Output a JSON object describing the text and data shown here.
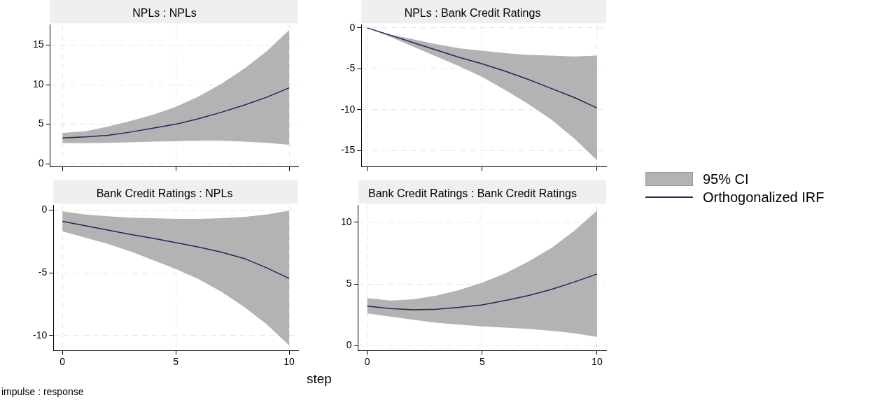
{
  "chart_data": [
    {
      "type": "line",
      "title": "NPLs : NPLs",
      "annotations": [
        "95% CI"
      ],
      "x": [
        0,
        1,
        2,
        3,
        4,
        5,
        6,
        7,
        8,
        9,
        10
      ],
      "xlim": [
        -0.55,
        10.4
      ],
      "xticks": [
        0,
        5,
        10
      ],
      "ylim": [
        -0.4,
        17.6
      ],
      "yticks": [
        0,
        5,
        10,
        15
      ],
      "grid": true,
      "tick_labels": "y",
      "legend": "right",
      "marker": "none",
      "series": [
        {
          "name": "Orthogonalized IRF",
          "color": "#1a2a5a",
          "values": [
            3.25,
            3.4,
            3.6,
            4.0,
            4.5,
            5.0,
            5.7,
            6.5,
            7.4,
            8.4,
            9.6
          ],
          "lower": [
            2.62,
            2.6,
            2.65,
            2.7,
            2.8,
            2.85,
            2.9,
            2.9,
            2.8,
            2.65,
            2.4
          ],
          "upper": [
            3.9,
            4.1,
            4.7,
            5.4,
            6.2,
            7.2,
            8.5,
            10.1,
            12.0,
            14.2,
            16.9
          ]
        }
      ]
    },
    {
      "type": "line",
      "title": "NPLs : Bank Credit Ratings",
      "x": [
        0,
        1,
        2,
        3,
        4,
        5,
        6,
        7,
        8,
        9,
        10
      ],
      "xlim": [
        -0.26,
        10.4
      ],
      "xticks": [
        0,
        5,
        10
      ],
      "ylim": [
        -17,
        0.4
      ],
      "yticks": [
        -15,
        -10,
        -5,
        0
      ],
      "grid": true,
      "tick_labels": "y",
      "marker": "none",
      "series": [
        {
          "color": "#1a2a5a",
          "values": [
            0,
            -0.9,
            -1.8,
            -2.7,
            -3.6,
            -4.4,
            -5.3,
            -6.3,
            -7.4,
            -8.5,
            -9.8
          ],
          "lower": [
            0,
            -1.1,
            -2.3,
            -3.5,
            -4.7,
            -6.0,
            -7.6,
            -9.3,
            -11.2,
            -13.5,
            -16.2
          ],
          "upper": [
            0,
            -0.8,
            -1.4,
            -2.0,
            -2.5,
            -2.8,
            -3.1,
            -3.3,
            -3.4,
            -3.5,
            -3.4
          ]
        }
      ]
    },
    {
      "type": "line",
      "title": "Bank Credit Ratings : NPLs",
      "xlabel": "step",
      "annotations": [
        "impulse : response"
      ],
      "x": [
        0,
        1,
        2,
        3,
        4,
        5,
        6,
        7,
        8,
        9,
        10
      ],
      "xlim": [
        -0.4,
        10.4
      ],
      "xticks": [
        0,
        5,
        10
      ],
      "ylim": [
        -11.2,
        0.4
      ],
      "yticks": [
        -10,
        -5,
        0
      ],
      "grid": true,
      "marker": "none",
      "series": [
        {
          "color": "#1a2a5a",
          "values": [
            -0.9,
            -1.25,
            -1.6,
            -1.95,
            -2.25,
            -2.6,
            -2.95,
            -3.35,
            -3.85,
            -4.6,
            -5.45
          ],
          "lower": [
            -1.7,
            -2.2,
            -2.7,
            -3.3,
            -4.0,
            -4.7,
            -5.5,
            -6.5,
            -7.7,
            -9.1,
            -10.8
          ],
          "upper": [
            -0.1,
            -0.35,
            -0.5,
            -0.6,
            -0.65,
            -0.7,
            -0.7,
            -0.65,
            -0.55,
            -0.35,
            -0.05
          ]
        }
      ]
    },
    {
      "type": "line",
      "title": "Bank Credit Ratings : Bank Credit Ratings",
      "x": [
        0,
        1,
        2,
        3,
        4,
        5,
        6,
        7,
        8,
        9,
        10
      ],
      "xlim": [
        -0.4,
        10.4
      ],
      "xticks": [
        0,
        5,
        10
      ],
      "ylim": [
        -0.4,
        11.4
      ],
      "yticks": [
        0,
        5,
        10
      ],
      "grid": true,
      "marker": "none",
      "series": [
        {
          "color": "#1a2a5a",
          "values": [
            3.2,
            3.0,
            2.9,
            2.95,
            3.1,
            3.3,
            3.65,
            4.05,
            4.55,
            5.15,
            5.8
          ],
          "lower": [
            2.6,
            2.35,
            2.1,
            1.85,
            1.7,
            1.55,
            1.45,
            1.35,
            1.2,
            1.0,
            0.7
          ],
          "upper": [
            3.85,
            3.65,
            3.75,
            4.05,
            4.5,
            5.1,
            5.85,
            6.8,
            7.9,
            9.3,
            10.95
          ]
        }
      ]
    }
  ]
}
